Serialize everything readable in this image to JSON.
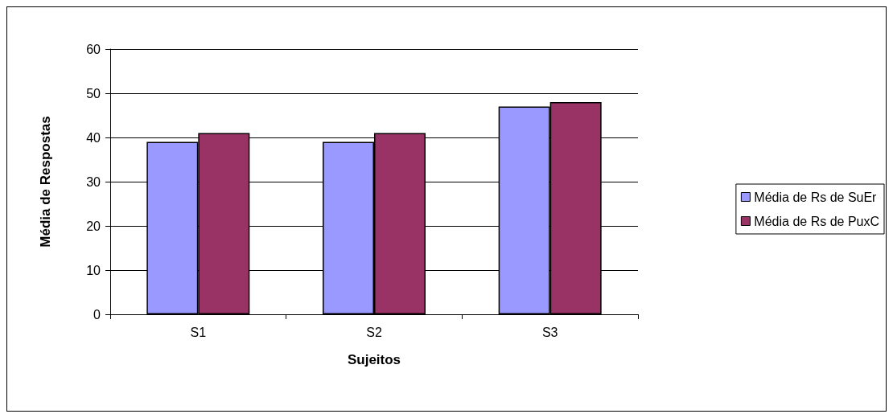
{
  "chart_data": {
    "type": "bar",
    "xlabel": "Sujeitos",
    "ylabel": "Média de Respostas",
    "categories": [
      "S1",
      "S2",
      "S3"
    ],
    "series": [
      {
        "name": "Média de Rs de SuEr",
        "color": "#9999ff",
        "values": [
          39,
          39,
          47
        ]
      },
      {
        "name": "Média de Rs de PuxC",
        "color": "#993366",
        "values": [
          41,
          41,
          48
        ]
      }
    ],
    "ylim": [
      0,
      60
    ],
    "yticks": [
      0,
      10,
      20,
      30,
      40,
      50,
      60
    ],
    "grid": "y",
    "legend": "right"
  }
}
